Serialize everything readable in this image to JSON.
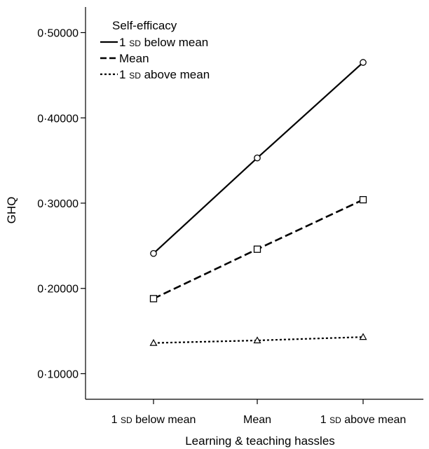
{
  "chart_data": {
    "type": "line",
    "title": "",
    "xlabel": "Learning & teaching hassles",
    "ylabel": "GHQ",
    "categories": [
      {
        "pre": "1 ",
        "sd": "SD",
        "post": " below mean"
      },
      {
        "pre": "Mean",
        "sd": "",
        "post": ""
      },
      {
        "pre": "1 ",
        "sd": "SD",
        "post": " above mean"
      }
    ],
    "yticks": [
      "0·10000",
      "0·20000",
      "0·30000",
      "0·40000",
      "0·50000"
    ],
    "ytick_values": [
      0.1,
      0.2,
      0.3,
      0.4,
      0.5
    ],
    "ylim": [
      0.07,
      0.53
    ],
    "grid": false,
    "legend": {
      "title": "Self-efficacy",
      "placement": "top-left"
    },
    "series": [
      {
        "label": {
          "pre": "1 ",
          "sd": "SD",
          "post": " below mean"
        },
        "style": "solid",
        "marker": "circle",
        "values": [
          0.241,
          0.353,
          0.465
        ]
      },
      {
        "label": {
          "pre": "Mean",
          "sd": "",
          "post": ""
        },
        "style": "dashed",
        "marker": "square",
        "values": [
          0.188,
          0.246,
          0.304
        ]
      },
      {
        "label": {
          "pre": "1 ",
          "sd": "SD",
          "post": " above mean"
        },
        "style": "dotted",
        "marker": "triangle",
        "values": [
          0.136,
          0.139,
          0.143
        ]
      }
    ]
  }
}
